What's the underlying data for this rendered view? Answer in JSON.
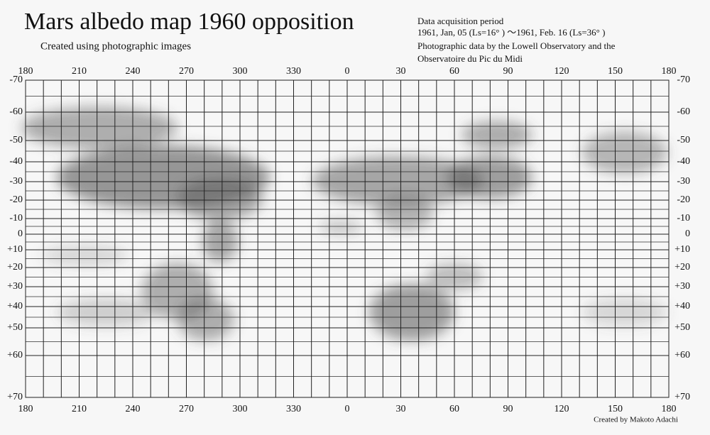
{
  "header": {
    "title": "Mars albedo map 1960  opposition",
    "subtitle": "Created using photographic images",
    "info": [
      "Data acquisition period",
      "1961, Jan, 05 (Ls=16° ) ～1961, Feb. 16 (Ls=36° )",
      "Photographic data by the Lowell Observatory and the",
      "Observatoire du Pic du Midi"
    ]
  },
  "map": {
    "longitude_labels": [
      "180",
      "210",
      "240",
      "270",
      "300",
      "330",
      "0",
      "30",
      "60",
      "90",
      "120",
      "150",
      "180"
    ],
    "latitude_labels": [
      "-70",
      "-60",
      "-50",
      "-40",
      "-30",
      "-20",
      "-10",
      "0",
      "+10",
      "+20",
      "+30",
      "+40",
      "+50",
      "+60",
      "+70"
    ]
  },
  "footer": {
    "credit": "Created by Makoto Adachi"
  }
}
